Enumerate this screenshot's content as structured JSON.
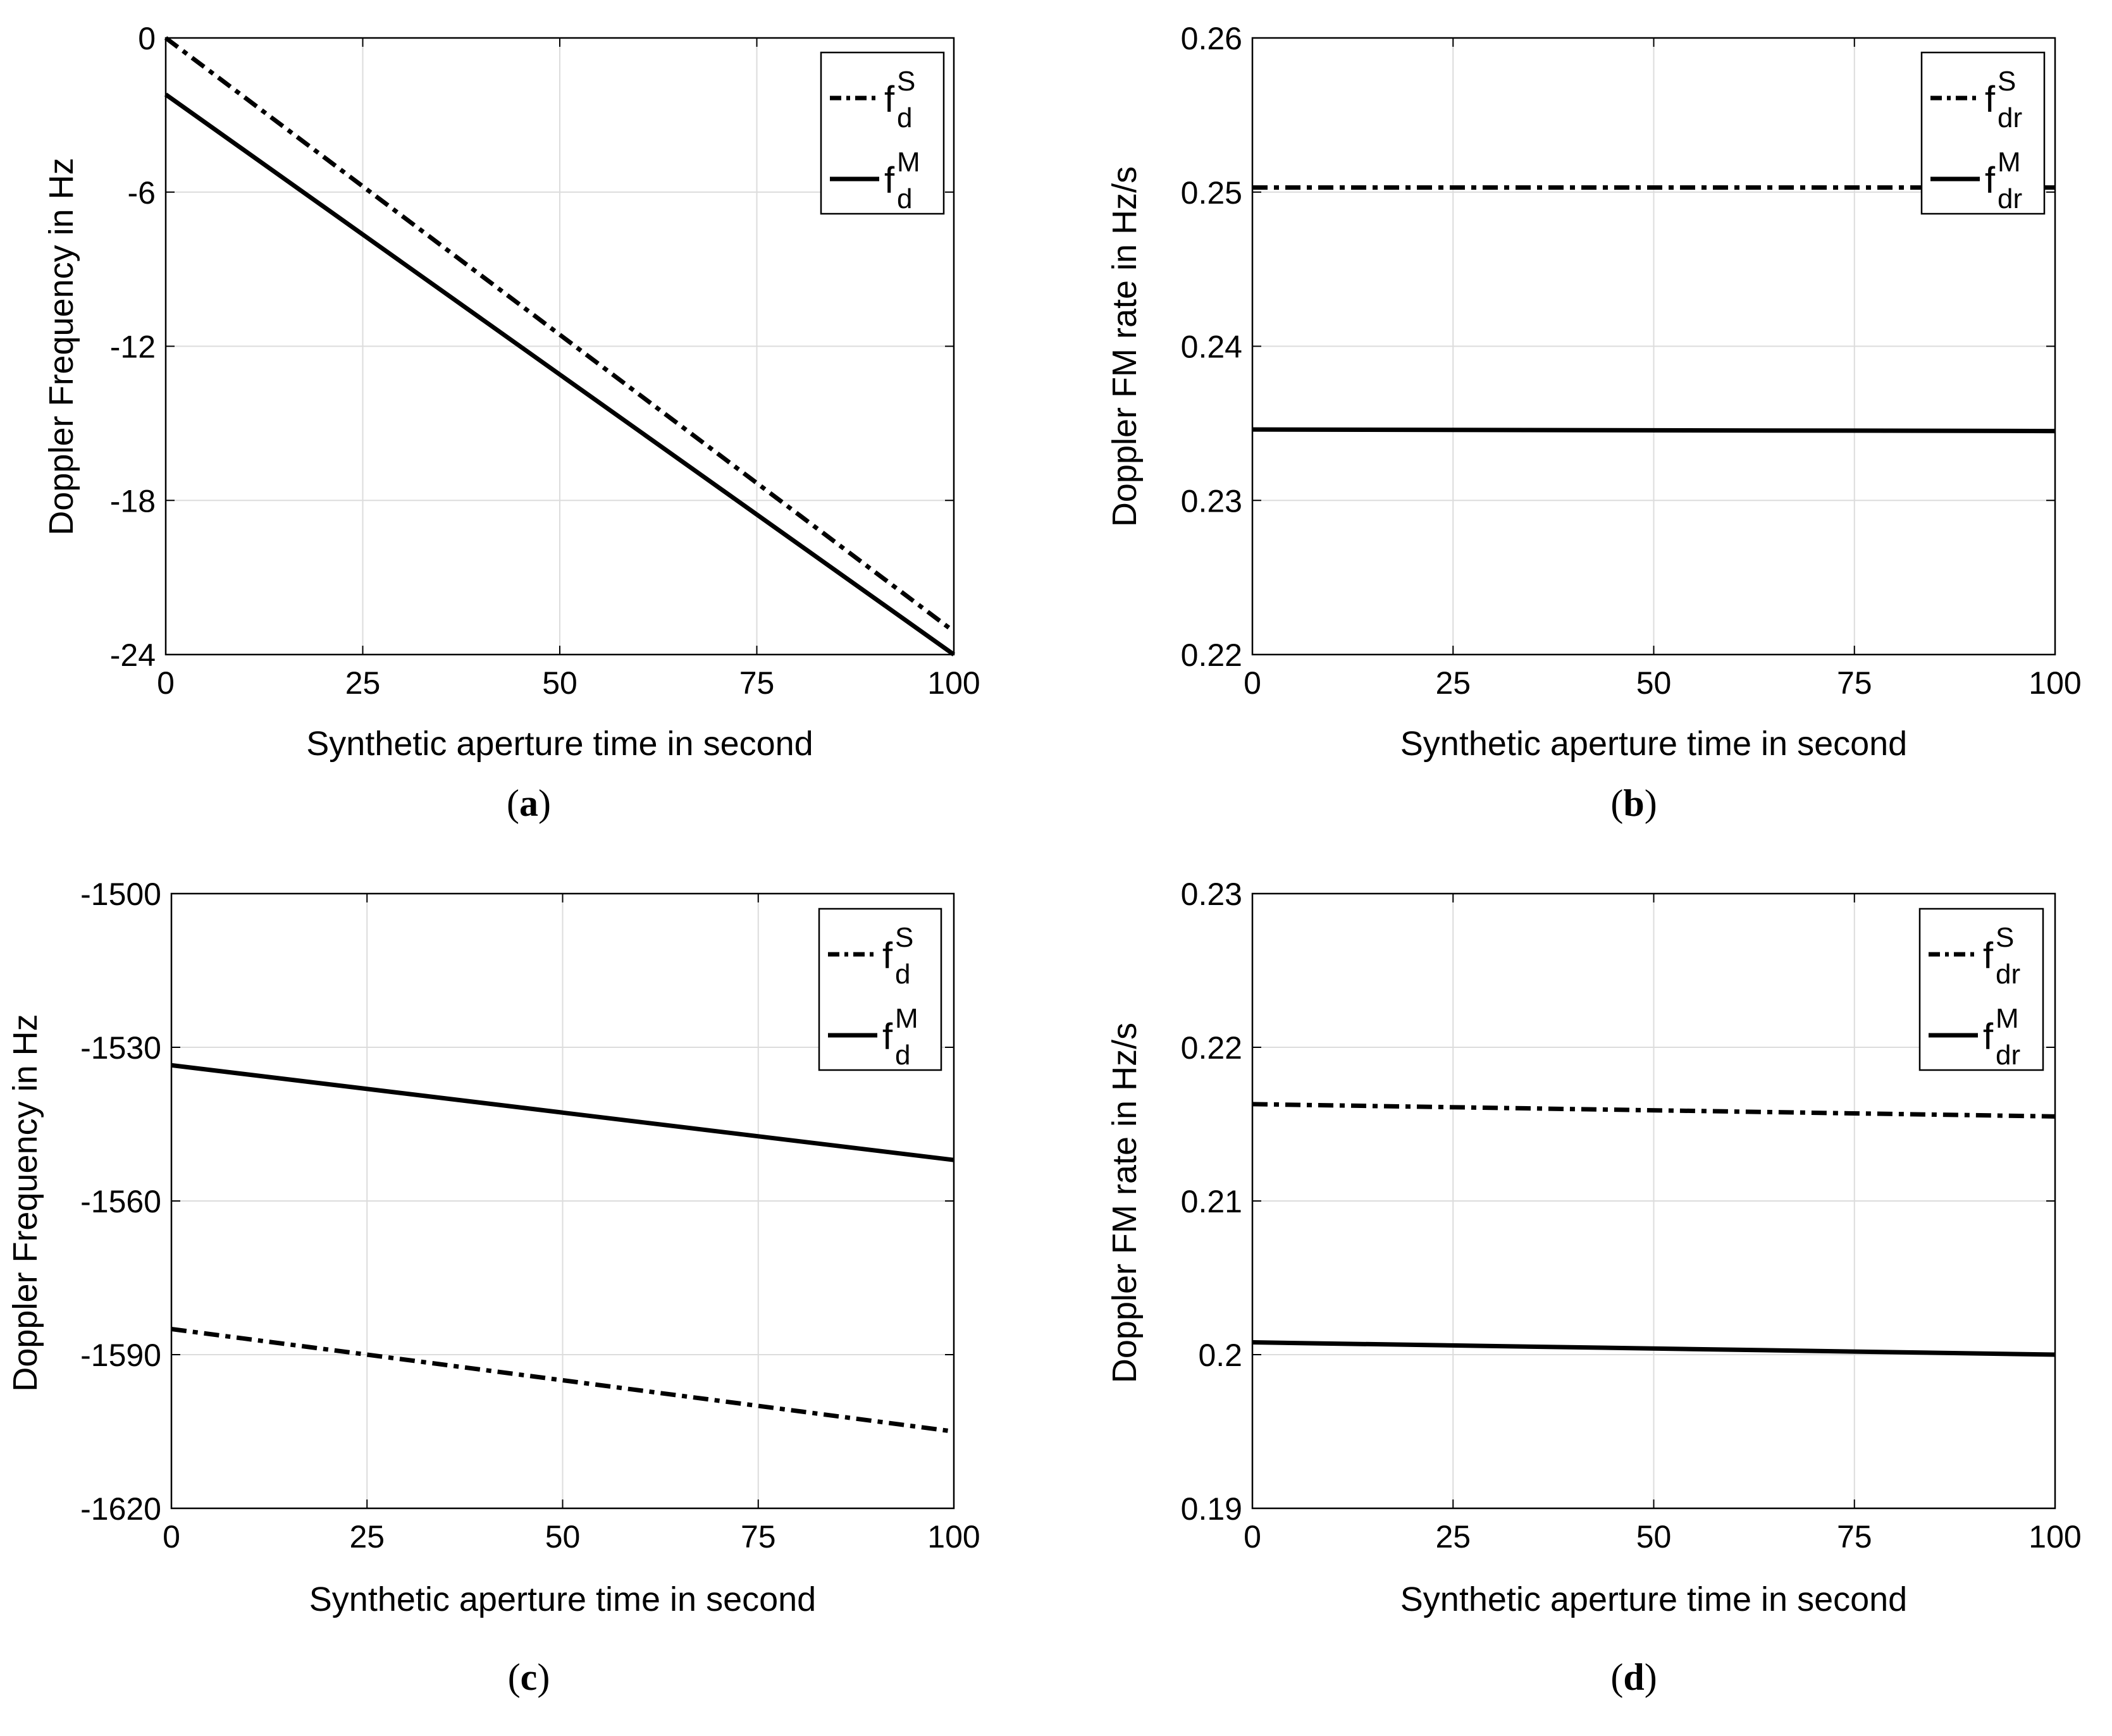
{
  "chart_data": [
    {
      "id": "a",
      "type": "line",
      "caption": "a",
      "xlabel": "Synthetic aperture time in second",
      "ylabel": "Doppler Frequency  in Hz",
      "xlim": [
        0,
        100
      ],
      "ylim": [
        -24,
        0
      ],
      "xticks": [
        0,
        25,
        50,
        75,
        100
      ],
      "yticks": [
        0,
        -6,
        -12,
        -18,
        -24
      ],
      "grid": true,
      "legend_position": "top-right",
      "series": [
        {
          "name": "f_d^S",
          "base": "f",
          "sup": "S",
          "sub": "d",
          "style": "dashdot",
          "x": [
            0,
            100
          ],
          "y": [
            0,
            -23.1
          ]
        },
        {
          "name": "f_d^M",
          "base": "f",
          "sup": "M",
          "sub": "d",
          "style": "solid",
          "x": [
            0,
            100
          ],
          "y": [
            -2.2,
            -24
          ]
        }
      ]
    },
    {
      "id": "b",
      "type": "line",
      "caption": "b",
      "xlabel": "Synthetic aperture time in second",
      "ylabel": "Doppler FM rate in Hz/s",
      "xlim": [
        0,
        100
      ],
      "ylim": [
        0.22,
        0.26
      ],
      "xticks": [
        0,
        25,
        50,
        75,
        100
      ],
      "yticks": [
        0.26,
        0.25,
        0.24,
        0.23,
        0.22
      ],
      "grid": true,
      "legend_position": "top-right",
      "series": [
        {
          "name": "f_dr^S",
          "base": "f",
          "sup": "S",
          "sub": "dr",
          "style": "dashdot",
          "x": [
            0,
            100
          ],
          "y": [
            0.2503,
            0.2503
          ]
        },
        {
          "name": "f_dr^M",
          "base": "f",
          "sup": "M",
          "sub": "dr",
          "style": "solid",
          "x": [
            0,
            100
          ],
          "y": [
            0.2346,
            0.2345
          ]
        }
      ]
    },
    {
      "id": "c",
      "type": "line",
      "caption": "c",
      "xlabel": "Synthetic aperture time in second",
      "ylabel": "Doppler Frequency  in Hz",
      "xlim": [
        0,
        100
      ],
      "ylim": [
        -1620,
        -1500
      ],
      "xticks": [
        0,
        25,
        50,
        75,
        100
      ],
      "yticks": [
        -1500,
        -1530,
        -1560,
        -1590,
        -1620
      ],
      "grid": true,
      "legend_position": "top-right",
      "series": [
        {
          "name": "f_d^S",
          "base": "f",
          "sup": "S",
          "sub": "d",
          "style": "dashdot",
          "x": [
            0,
            100
          ],
          "y": [
            -1585,
            -1605
          ]
        },
        {
          "name": "f_d^M",
          "base": "f",
          "sup": "M",
          "sub": "d",
          "style": "solid",
          "x": [
            0,
            100
          ],
          "y": [
            -1533.5,
            -1552
          ]
        }
      ]
    },
    {
      "id": "d",
      "type": "line",
      "caption": "d",
      "xlabel": "Synthetic aperture time in second",
      "ylabel": "Doppler FM rate in Hz/s",
      "xlim": [
        0,
        100
      ],
      "ylim": [
        0.19,
        0.23
      ],
      "xticks": [
        0,
        25,
        50,
        75,
        100
      ],
      "yticks": [
        0.23,
        0.22,
        0.21,
        0.2,
        0.19
      ],
      "grid": true,
      "legend_position": "top-right",
      "series": [
        {
          "name": "f_dr^S",
          "base": "f",
          "sup": "S",
          "sub": "dr",
          "style": "dashdot",
          "x": [
            0,
            100
          ],
          "y": [
            0.2163,
            0.2155
          ]
        },
        {
          "name": "f_dr^M",
          "base": "f",
          "sup": "M",
          "sub": "dr",
          "style": "solid",
          "x": [
            0,
            100
          ],
          "y": [
            0.2008,
            0.2
          ]
        }
      ]
    }
  ]
}
